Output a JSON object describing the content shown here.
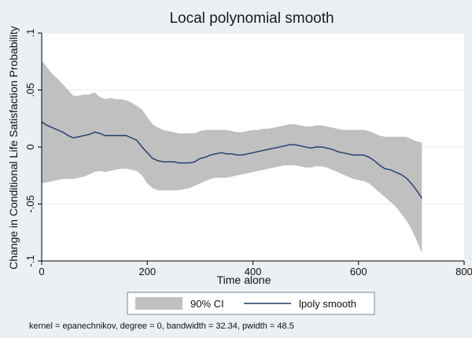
{
  "chart_data": {
    "type": "line",
    "title": "Local polynomial smooth",
    "xlabel": "Time alone",
    "ylabel": "Change in Conditional Life Satisfaction Probability",
    "xlim": [
      0,
      800
    ],
    "ylim": [
      -0.1,
      0.1
    ],
    "xticks": [
      0,
      200,
      400,
      600,
      800
    ],
    "xtick_labels": [
      "0",
      "200",
      "400",
      "600",
      "800"
    ],
    "yticks": [
      -0.1,
      -0.05,
      0,
      0.05,
      0.1
    ],
    "ytick_labels": [
      "-.1",
      "-.05",
      "0",
      ".05",
      ".1"
    ],
    "grid": true,
    "legend_position": "bottom",
    "note": "kernel = epanechnikov, degree = 0, bandwidth = 32.34, pwidth = 48.5",
    "colors": {
      "band": "#c0c0c0",
      "line": "#1a3a6b",
      "background": "#eaf0f3",
      "plot_bg": "#ffffff"
    },
    "x": [
      0,
      10,
      20,
      30,
      40,
      50,
      60,
      70,
      80,
      90,
      100,
      110,
      120,
      130,
      140,
      150,
      160,
      170,
      180,
      190,
      200,
      210,
      220,
      230,
      240,
      250,
      260,
      270,
      280,
      290,
      300,
      310,
      320,
      330,
      340,
      350,
      360,
      370,
      380,
      390,
      400,
      410,
      420,
      430,
      440,
      450,
      460,
      470,
      480,
      490,
      500,
      510,
      520,
      530,
      540,
      550,
      560,
      570,
      580,
      590,
      600,
      610,
      620,
      630,
      640,
      650,
      660,
      670,
      680,
      690,
      700,
      710,
      720
    ],
    "series": [
      {
        "name": "lpoly smooth",
        "kind": "line",
        "values": [
          0.022,
          0.019,
          0.017,
          0.015,
          0.013,
          0.01,
          0.008,
          0.009,
          0.01,
          0.011,
          0.013,
          0.012,
          0.01,
          0.01,
          0.01,
          0.01,
          0.01,
          0.008,
          0.006,
          0.0,
          -0.005,
          -0.01,
          -0.012,
          -0.013,
          -0.013,
          -0.013,
          -0.014,
          -0.014,
          -0.014,
          -0.013,
          -0.01,
          -0.009,
          -0.007,
          -0.006,
          -0.005,
          -0.006,
          -0.006,
          -0.007,
          -0.007,
          -0.006,
          -0.005,
          -0.004,
          -0.003,
          -0.002,
          -0.001,
          0.0,
          0.001,
          0.002,
          0.002,
          0.001,
          0.0,
          -0.001,
          0.0,
          0.0,
          -0.001,
          -0.002,
          -0.004,
          -0.005,
          -0.006,
          -0.007,
          -0.007,
          -0.007,
          -0.009,
          -0.012,
          -0.016,
          -0.019,
          -0.02,
          -0.022,
          -0.024,
          -0.027,
          -0.032,
          -0.038,
          -0.045
        ]
      },
      {
        "name": "90% CI",
        "kind": "band",
        "upper": [
          0.076,
          0.07,
          0.064,
          0.06,
          0.055,
          0.05,
          0.045,
          0.045,
          0.046,
          0.046,
          0.048,
          0.044,
          0.042,
          0.043,
          0.042,
          0.042,
          0.041,
          0.039,
          0.036,
          0.033,
          0.026,
          0.02,
          0.017,
          0.015,
          0.014,
          0.013,
          0.012,
          0.012,
          0.012,
          0.012,
          0.014,
          0.015,
          0.015,
          0.015,
          0.015,
          0.015,
          0.014,
          0.013,
          0.013,
          0.014,
          0.015,
          0.015,
          0.016,
          0.016,
          0.017,
          0.018,
          0.019,
          0.02,
          0.02,
          0.019,
          0.018,
          0.018,
          0.019,
          0.019,
          0.018,
          0.017,
          0.016,
          0.015,
          0.015,
          0.015,
          0.015,
          0.015,
          0.014,
          0.012,
          0.01,
          0.009,
          0.009,
          0.009,
          0.009,
          0.009,
          0.007,
          0.005,
          0.004
        ],
        "lower": [
          -0.032,
          -0.031,
          -0.03,
          -0.029,
          -0.028,
          -0.028,
          -0.028,
          -0.027,
          -0.026,
          -0.024,
          -0.022,
          -0.021,
          -0.022,
          -0.021,
          -0.02,
          -0.019,
          -0.019,
          -0.02,
          -0.021,
          -0.025,
          -0.032,
          -0.036,
          -0.038,
          -0.038,
          -0.038,
          -0.038,
          -0.038,
          -0.037,
          -0.036,
          -0.034,
          -0.032,
          -0.03,
          -0.028,
          -0.027,
          -0.027,
          -0.027,
          -0.026,
          -0.025,
          -0.024,
          -0.023,
          -0.022,
          -0.021,
          -0.02,
          -0.019,
          -0.018,
          -0.017,
          -0.016,
          -0.016,
          -0.016,
          -0.017,
          -0.018,
          -0.018,
          -0.017,
          -0.017,
          -0.018,
          -0.02,
          -0.022,
          -0.024,
          -0.026,
          -0.028,
          -0.029,
          -0.03,
          -0.032,
          -0.036,
          -0.04,
          -0.044,
          -0.048,
          -0.052,
          -0.058,
          -0.064,
          -0.072,
          -0.082,
          -0.093
        ]
      }
    ]
  }
}
